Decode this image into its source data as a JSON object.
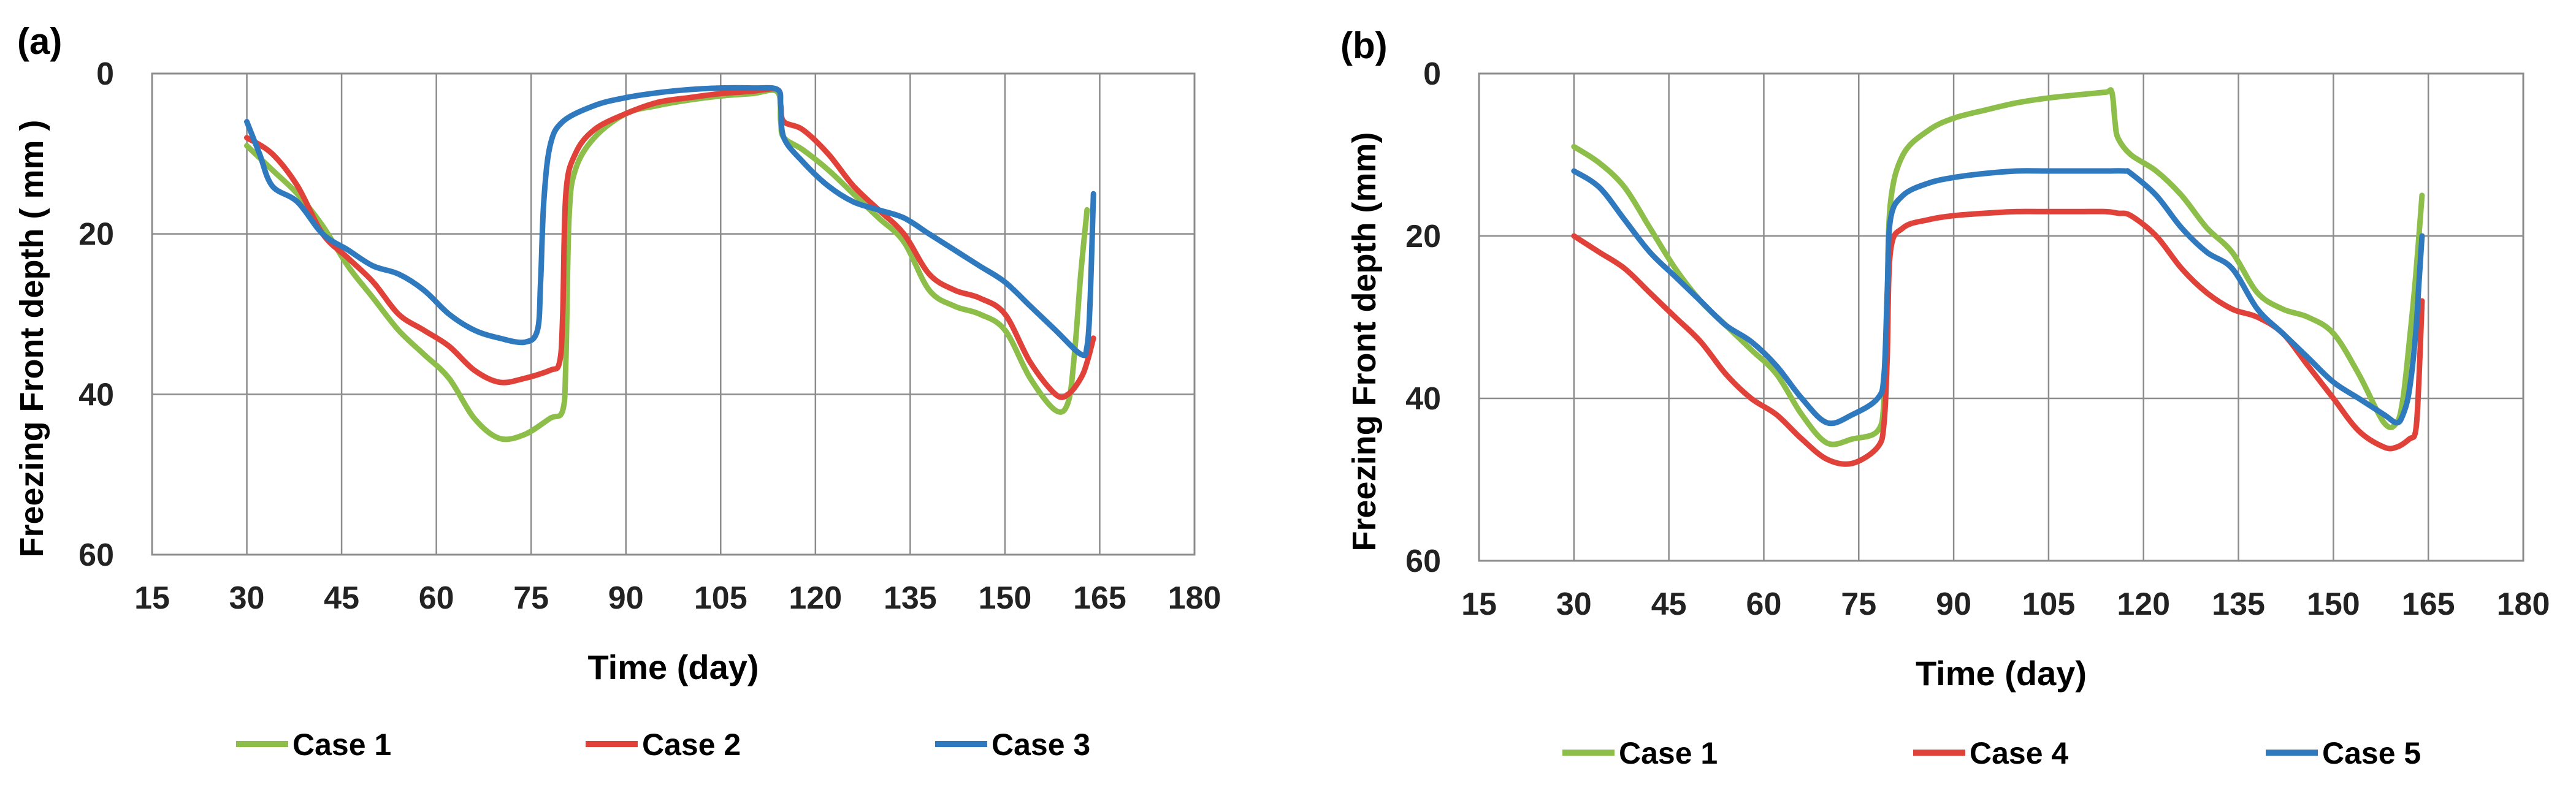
{
  "chart_data": [
    {
      "type": "line",
      "panel_label": "(a)",
      "xlabel": "Time (day)",
      "ylabel": "Freezing Front depth ( mm )",
      "xlim": [
        15,
        180
      ],
      "ylim": [
        0,
        60
      ],
      "y_inverted": true,
      "x_ticks": [
        "15",
        "30",
        "45",
        "60",
        "75",
        "90",
        "105",
        "120",
        "135",
        "150",
        "165",
        "180"
      ],
      "y_ticks": [
        "0",
        "20",
        "40",
        "60"
      ],
      "grid": true,
      "legend_position": "bottom",
      "series": [
        {
          "name": "Case 1",
          "color": "#8DBE4A",
          "x": [
            30,
            34,
            38,
            42,
            46,
            50,
            54,
            58,
            62,
            66,
            70,
            74,
            78,
            80,
            80.5,
            81,
            82,
            85,
            90,
            95,
            100,
            105,
            110,
            114,
            114.5,
            115,
            118,
            122,
            126,
            130,
            134,
            138,
            142,
            146,
            150,
            154,
            158,
            160,
            161,
            162,
            163
          ],
          "y": [
            9,
            12,
            15,
            19,
            24,
            28,
            32,
            35,
            38,
            43,
            45.5,
            45,
            43,
            42,
            36,
            18,
            12,
            8,
            5,
            4,
            3.3,
            2.8,
            2.5,
            2.3,
            6,
            8,
            9.5,
            12,
            15,
            18,
            21,
            27,
            29,
            30,
            32,
            38,
            42,
            41,
            35,
            25,
            17
          ]
        },
        {
          "name": "Case 2",
          "color": "#E0423A",
          "x": [
            30,
            34,
            38,
            42,
            46,
            50,
            54,
            58,
            62,
            66,
            70,
            74,
            78,
            79.5,
            80,
            80.5,
            82,
            85,
            90,
            95,
            100,
            105,
            110,
            114,
            114.5,
            115,
            118,
            122,
            126,
            130,
            134,
            138,
            142,
            146,
            150,
            154,
            158,
            160,
            162,
            163,
            164
          ],
          "y": [
            8,
            10,
            14,
            20,
            23,
            26,
            30,
            32,
            34,
            37,
            38.5,
            38,
            37,
            36,
            30,
            15,
            10,
            7,
            5,
            3.6,
            3,
            2.5,
            2.2,
            2,
            4,
            6,
            7,
            10,
            14,
            17,
            20,
            25,
            27,
            28,
            30,
            36,
            40,
            40,
            38,
            36,
            33
          ]
        },
        {
          "name": "Case 3",
          "color": "#2F79BF",
          "x": [
            30,
            32,
            34,
            38,
            42,
            46,
            50,
            54,
            58,
            62,
            66,
            70,
            74,
            76,
            76.5,
            77,
            78,
            80,
            85,
            90,
            95,
            100,
            105,
            110,
            114,
            114.5,
            115,
            118,
            122,
            126,
            130,
            134,
            138,
            142,
            146,
            150,
            154,
            158,
            162,
            163,
            163.5,
            164
          ],
          "y": [
            6,
            10,
            14,
            16,
            20,
            22,
            24,
            25,
            27,
            30,
            32,
            33,
            33.5,
            32,
            26,
            16,
            9,
            6,
            4,
            3,
            2.4,
            2,
            1.8,
            1.8,
            2,
            4,
            8,
            11,
            14,
            16,
            17,
            18,
            20,
            22,
            24,
            26,
            29,
            32,
            35,
            34,
            28,
            15
          ]
        }
      ],
      "legend": [
        "Case 1",
        "Case 2",
        "Case 3"
      ]
    },
    {
      "type": "line",
      "panel_label": "(b)",
      "xlabel": "Time (day)",
      "ylabel": "Freezing Front depth (mm)",
      "xlim": [
        15,
        180
      ],
      "ylim": [
        0,
        60
      ],
      "y_inverted": true,
      "x_ticks": [
        "15",
        "30",
        "45",
        "60",
        "75",
        "90",
        "105",
        "120",
        "135",
        "150",
        "165",
        "180"
      ],
      "y_ticks": [
        "0",
        "20",
        "40",
        "60"
      ],
      "grid": true,
      "legend_position": "bottom",
      "series": [
        {
          "name": "Case 1",
          "color": "#8DBE4A",
          "x": [
            30,
            34,
            38,
            42,
            46,
            50,
            54,
            58,
            62,
            66,
            70,
            74,
            78,
            79,
            79.5,
            80,
            82,
            86,
            90,
            95,
            100,
            105,
            110,
            114,
            115,
            115.5,
            116,
            118,
            122,
            126,
            130,
            134,
            138,
            142,
            146,
            150,
            154,
            158,
            160,
            161,
            162,
            163,
            164
          ],
          "y": [
            9,
            11,
            14,
            19,
            24,
            28,
            31,
            34,
            37,
            42,
            45.5,
            45,
            44,
            40,
            28,
            16,
            10,
            7,
            5.5,
            4.5,
            3.6,
            3,
            2.6,
            2.3,
            2.3,
            6,
            8,
            10,
            12,
            15,
            19,
            22,
            27,
            29,
            30,
            32,
            37,
            43,
            43,
            40,
            33,
            25,
            15
          ]
        },
        {
          "name": "Case 4",
          "color": "#E0423A",
          "x": [
            30,
            34,
            38,
            42,
            46,
            50,
            54,
            58,
            62,
            66,
            70,
            74,
            78,
            79,
            79.5,
            80,
            82,
            86,
            90,
            95,
            100,
            105,
            110,
            114,
            116,
            118,
            122,
            126,
            130,
            134,
            138,
            142,
            146,
            150,
            154,
            158,
            160,
            162,
            163,
            163.5,
            164
          ],
          "y": [
            20,
            22,
            24,
            27,
            30,
            33,
            37,
            40,
            42,
            45,
            47.5,
            48,
            46,
            43,
            35,
            22,
            19,
            18,
            17.5,
            17.2,
            17,
            17,
            17,
            17,
            17.2,
            17.5,
            20,
            24,
            27,
            29,
            30,
            32,
            36,
            40,
            44,
            46,
            46,
            45,
            44,
            38,
            28
          ]
        },
        {
          "name": "Case 5",
          "color": "#2F79BF",
          "x": [
            30,
            34,
            38,
            42,
            46,
            50,
            54,
            58,
            62,
            66,
            70,
            74,
            78,
            79,
            79.5,
            80,
            82,
            86,
            90,
            95,
            100,
            105,
            110,
            114,
            117,
            118,
            122,
            126,
            130,
            134,
            138,
            142,
            146,
            150,
            154,
            158,
            160,
            161,
            162,
            163,
            163.5,
            164
          ],
          "y": [
            12,
            14,
            18,
            22,
            25,
            28,
            31,
            33,
            36,
            40,
            43,
            42,
            40,
            37,
            27,
            18,
            15,
            13.5,
            12.8,
            12.3,
            12,
            12,
            12,
            12,
            12,
            12.3,
            15,
            19,
            22,
            24,
            29,
            32,
            35,
            38,
            40,
            42,
            43,
            42,
            39,
            32,
            26,
            20
          ]
        }
      ],
      "legend": [
        "Case 1",
        "Case 4",
        "Case 5"
      ]
    }
  ]
}
